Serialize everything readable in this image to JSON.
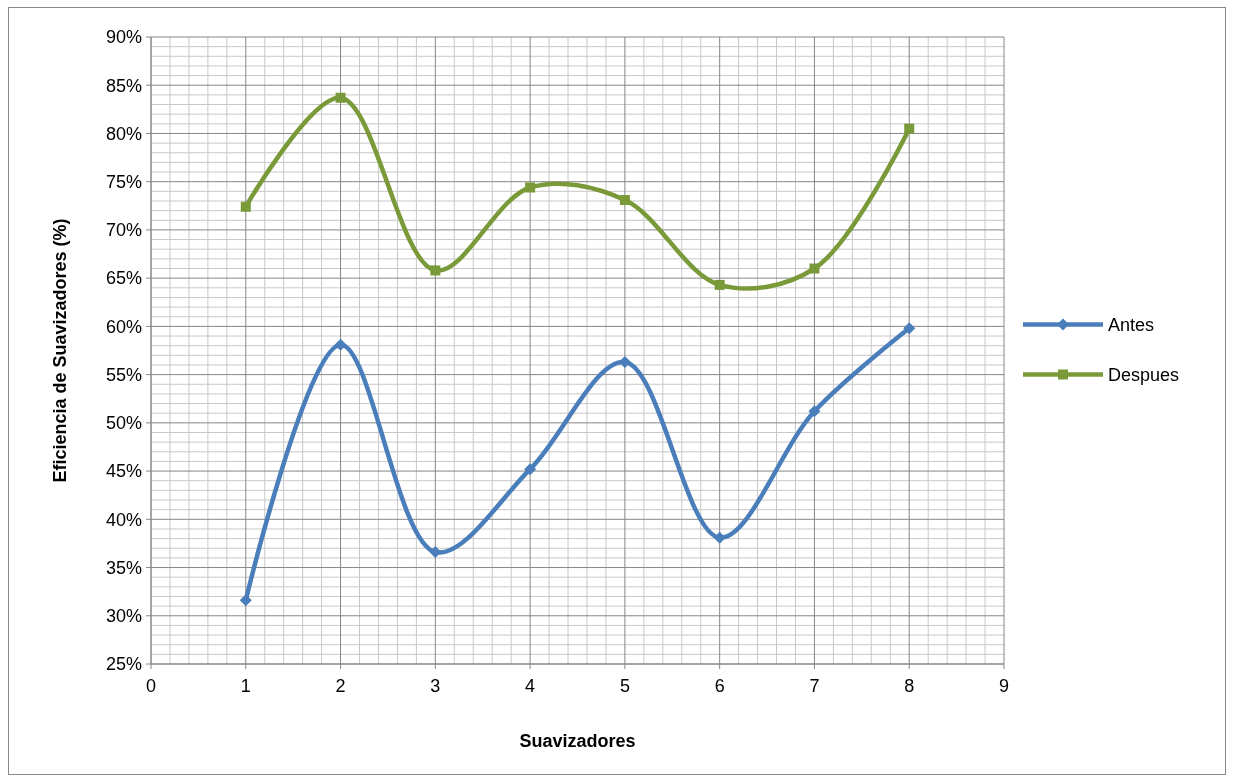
{
  "chart_data": {
    "type": "line",
    "xlabel": "Suavizadores",
    "ylabel": "Eficiencia de Suavizadores (%)",
    "x": [
      1,
      2,
      3,
      4,
      5,
      6,
      7,
      8
    ],
    "series": [
      {
        "name": "Antes",
        "color": "#4a7ebb",
        "marker": "diamond",
        "values": [
          31.6,
          58.1,
          36.6,
          45.2,
          56.3,
          38.1,
          51.2,
          59.8
        ]
      },
      {
        "name": "Despues",
        "color": "#7a9a3a",
        "marker": "square",
        "values": [
          72.4,
          83.7,
          65.8,
          74.4,
          73.1,
          64.3,
          66.0,
          80.5
        ]
      }
    ],
    "xlim": [
      0,
      9
    ],
    "xticks": [
      0,
      1,
      2,
      3,
      4,
      5,
      6,
      7,
      8,
      9
    ],
    "ylim": [
      25,
      90
    ],
    "yticks": [
      {
        "value": 25,
        "label": "25%"
      },
      {
        "value": 30,
        "label": "30%"
      },
      {
        "value": 35,
        "label": "35%"
      },
      {
        "value": 40,
        "label": "40%"
      },
      {
        "value": 45,
        "label": "45%"
      },
      {
        "value": 50,
        "label": "50%"
      },
      {
        "value": 55,
        "label": "55%"
      },
      {
        "value": 60,
        "label": "60%"
      },
      {
        "value": 65,
        "label": "65%"
      },
      {
        "value": 70,
        "label": "70%"
      },
      {
        "value": 75,
        "label": "75%"
      },
      {
        "value": 80,
        "label": "80%"
      },
      {
        "value": 85,
        "label": "85%"
      },
      {
        "value": 90,
        "label": "90%"
      }
    ],
    "grid": true,
    "legend": "right",
    "line_style": "solid"
  }
}
